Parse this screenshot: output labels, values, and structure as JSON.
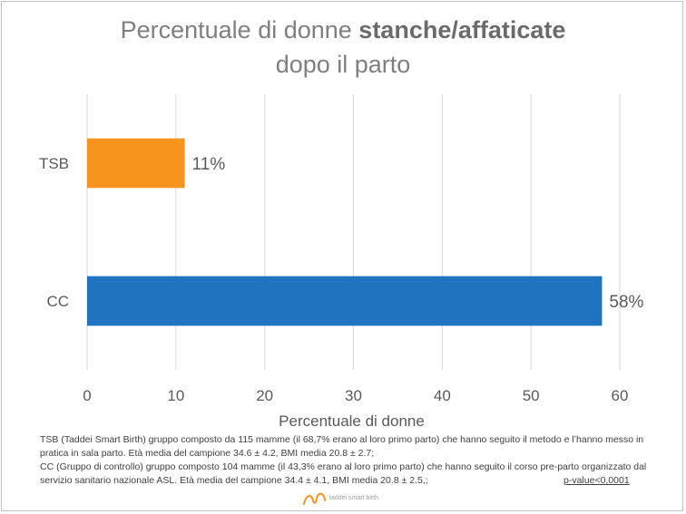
{
  "chart_data": {
    "type": "bar",
    "orientation": "horizontal",
    "title_parts": [
      "Percentuale di donne ",
      "stanche/affaticate",
      "dopo il parto"
    ],
    "categories": [
      "TSB",
      "CC"
    ],
    "values": [
      11,
      58
    ],
    "data_labels": [
      "11%",
      "58%"
    ],
    "colors": [
      "#F7941D",
      "#1F73BF"
    ],
    "xlabel": "Percentuale di donne",
    "ylabel": "",
    "xlim": [
      0,
      60
    ],
    "xticks": [
      "0",
      "10",
      "20",
      "30",
      "40",
      "50",
      "60"
    ],
    "grid": "vertical"
  },
  "notes": {
    "line1": "TSB (Taddei Smart Birth) gruppo composto da 115 mamme (il 68,7% erano al loro primo parto) che hanno seguito il metodo e l’hanno messo in pratica in sala parto. Età media del campione 34.6 ± 4.2, BMI media 20.8 ± 2.7;",
    "line2": "CC (Gruppo di controllo) gruppo composto 104 mamme (il 43,3% erano al loro primo parto) che hanno seguito il corso pre-parto organizzato dal servizio sanitario nazionale ASL. Età media del campione 34.4 ± 4.1, BMI media 20.8 ± 2.5,;",
    "pvalue": "p-value<0,0001"
  },
  "logo": {
    "text": "taddei smart birth",
    "accent": "#F7941D"
  }
}
